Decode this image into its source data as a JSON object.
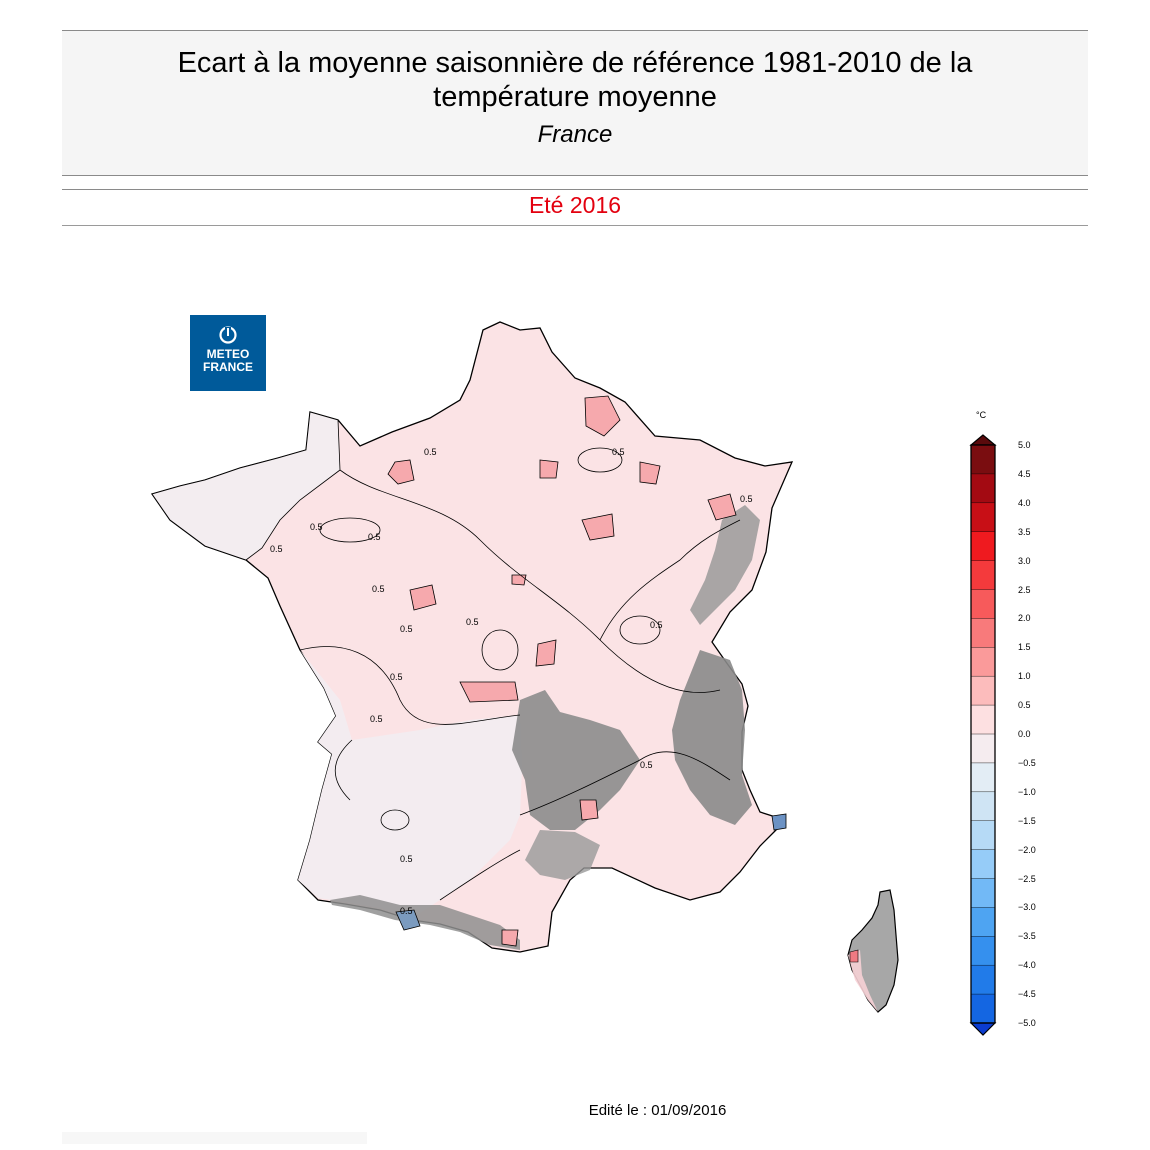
{
  "header": {
    "title_line1": "Ecart à la moyenne saisonnière de référence 1981-2010 de la",
    "title_line2": "température moyenne",
    "region": "France",
    "period": "Eté 2016"
  },
  "logo": {
    "line1": "METEO",
    "line2": "FRANCE",
    "icon": "meteo-france-logo-icon",
    "color": "#005a9a"
  },
  "legend": {
    "unit": "°C",
    "ticks": [
      "5.0",
      "4.5",
      "4.0",
      "3.5",
      "3.0",
      "2.5",
      "2.0",
      "1.5",
      "1.0",
      "0.5",
      "0.0",
      "−0.5",
      "−1.0",
      "−1.5",
      "−2.0",
      "−2.5",
      "−3.0",
      "−3.5",
      "−4.0",
      "−4.5",
      "−5.0"
    ],
    "colors": [
      "#7a0d10",
      "#a30a12",
      "#c80f16",
      "#ef1a1f",
      "#f43a3c",
      "#f75a5b",
      "#f87a7b",
      "#fa9a9a",
      "#fcbcbc",
      "#fde0e1",
      "#f5ecef",
      "#e3edf5",
      "#cfe4f4",
      "#b6daf6",
      "#96ccf8",
      "#72b9f6",
      "#4ea4f2",
      "#3590ee",
      "#217be9",
      "#1466e2",
      "#0d4fd8"
    ]
  },
  "map": {
    "contour_labels": [
      "0.5",
      "0.5",
      "0.5",
      "0.5",
      "0.5",
      "0.5",
      "0.5",
      "0.5",
      "0.5",
      "0.5",
      "0.5",
      "0.5",
      "0.5",
      "0.5",
      "0.5"
    ],
    "fill_main": "#fbe4e6",
    "fill_west": "#f3edf0",
    "fill_relief": "#8c8c8c"
  },
  "footer": {
    "edition": "Edité le : 01/09/2016"
  }
}
